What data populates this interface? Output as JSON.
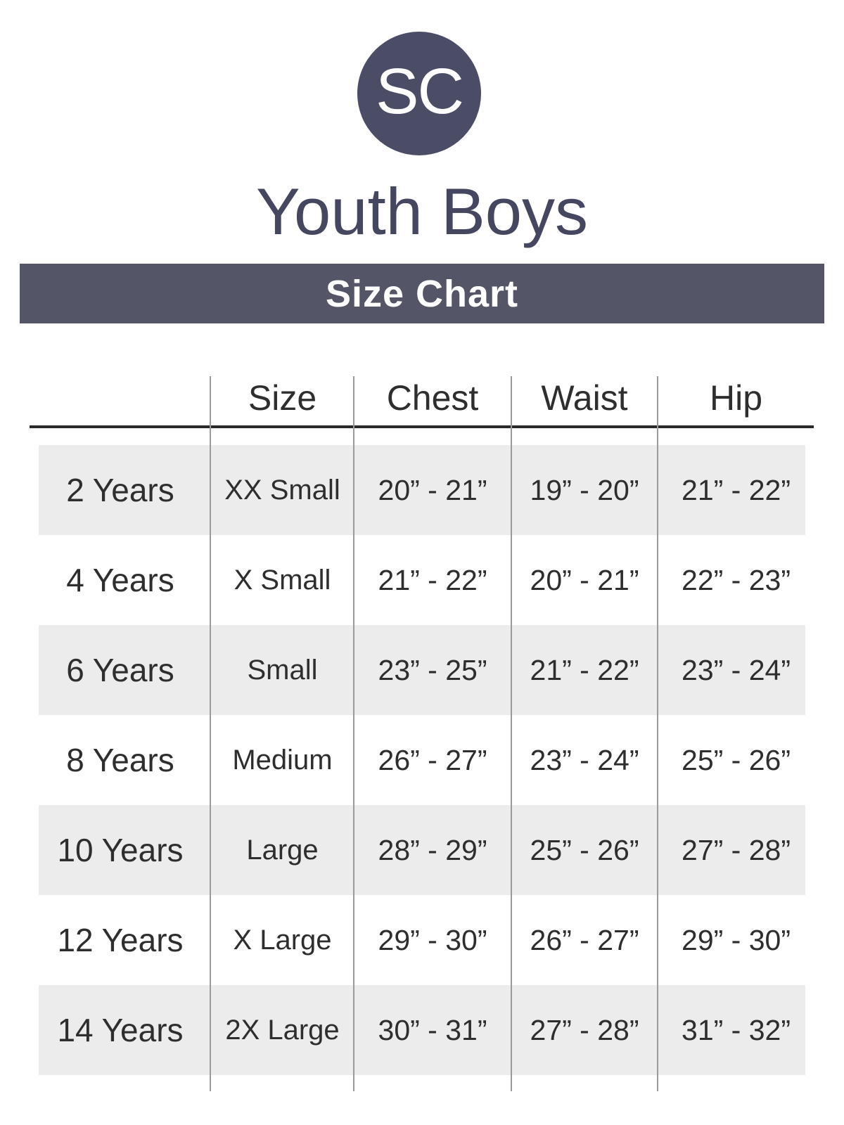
{
  "logo": {
    "text": "SC",
    "circle_color": "#4b4d66",
    "text_color": "#ffffff"
  },
  "title": "Youth Boys",
  "banner": {
    "label": "Size Chart",
    "bg_color": "#545668",
    "text_color": "#ffffff"
  },
  "table": {
    "headers": [
      "",
      "Size",
      "Chest",
      "Waist",
      "Hip"
    ],
    "rows": [
      {
        "age": "2 Years",
        "size": "XX Small",
        "chest": "20” - 21”",
        "waist": "19” - 20”",
        "hip": "21” - 22”"
      },
      {
        "age": "4 Years",
        "size": "X Small",
        "chest": "21” - 22”",
        "waist": "20” - 21”",
        "hip": "22” - 23”"
      },
      {
        "age": "6 Years",
        "size": "Small",
        "chest": "23” - 25”",
        "waist": "21” - 22”",
        "hip": "23” - 24”"
      },
      {
        "age": "8 Years",
        "size": "Medium",
        "chest": "26” - 27”",
        "waist": "23” - 24”",
        "hip": "25” - 26”"
      },
      {
        "age": "10 Years",
        "size": "Large",
        "chest": "28” - 29”",
        "waist": "25” - 26”",
        "hip": "27” - 28”"
      },
      {
        "age": "12 Years",
        "size": "X Large",
        "chest": "29” - 30”",
        "waist": "26” - 27”",
        "hip": "29” - 30”"
      },
      {
        "age": "14 Years",
        "size": "2X Large",
        "chest": "30” - 31”",
        "waist": "27” - 28”",
        "hip": "31” - 32”"
      }
    ],
    "stripe_color": "#ececec",
    "divider_color": "#9b9b9b",
    "header_rule_color": "#2b2b2b",
    "text_color": "#2e2e2e"
  },
  "chart_data": {
    "type": "table",
    "title": "Youth Boys Size Chart",
    "columns": [
      "",
      "Size",
      "Chest",
      "Waist",
      "Hip"
    ],
    "rows": [
      [
        "2 Years",
        "XX Small",
        "20” - 21”",
        "19” - 20”",
        "21” - 22”"
      ],
      [
        "4 Years",
        "X Small",
        "21” - 22”",
        "20” - 21”",
        "22” - 23”"
      ],
      [
        "6 Years",
        "Small",
        "23” - 25”",
        "21” - 22”",
        "23” - 24”"
      ],
      [
        "8 Years",
        "Medium",
        "26” - 27”",
        "23” - 24”",
        "25” - 26”"
      ],
      [
        "10 Years",
        "Large",
        "28” - 29”",
        "25” - 26”",
        "27” - 28”"
      ],
      [
        "12 Years",
        "X Large",
        "29” - 30”",
        "26” - 27”",
        "29” - 30”"
      ],
      [
        "14 Years",
        "2X Large",
        "30” - 31”",
        "27” - 28”",
        "31” - 32”"
      ]
    ]
  }
}
